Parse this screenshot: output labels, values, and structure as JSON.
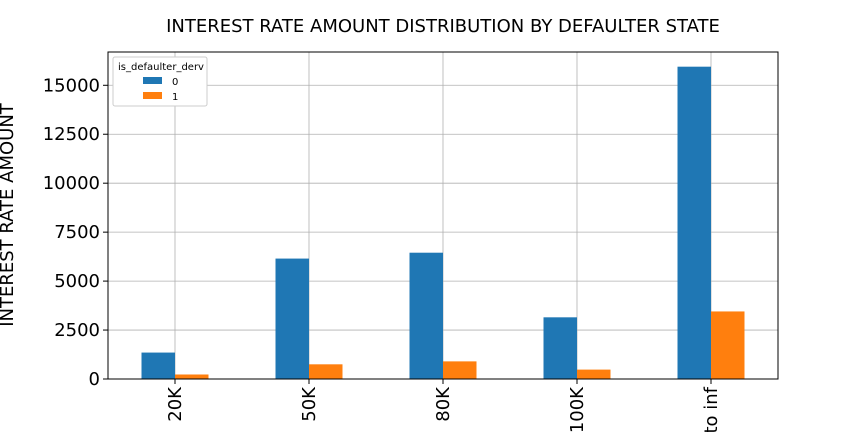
{
  "chart_data": {
    "type": "bar",
    "title": "INTEREST RATE AMOUNT DISTRIBUTION BY DEFAULTER STATE",
    "xlabel": "",
    "ylabel": "INTEREST RATE AMOUNT",
    "categories": [
      "20K",
      "50K",
      "80K",
      "100K",
      "to inf"
    ],
    "series": [
      {
        "name": "0",
        "color": "#1f77b4",
        "values": [
          1350,
          6150,
          6450,
          3150,
          15950
        ]
      },
      {
        "name": "1",
        "color": "#ff7f0e",
        "values": [
          230,
          750,
          900,
          480,
          3450
        ]
      }
    ],
    "ylim": [
      0,
      16700
    ],
    "yticks": [
      0,
      2500,
      5000,
      7500,
      10000,
      12500,
      15000
    ],
    "grid": true,
    "legend": {
      "title": "is_defaulter_derv",
      "position": "top-left"
    }
  }
}
